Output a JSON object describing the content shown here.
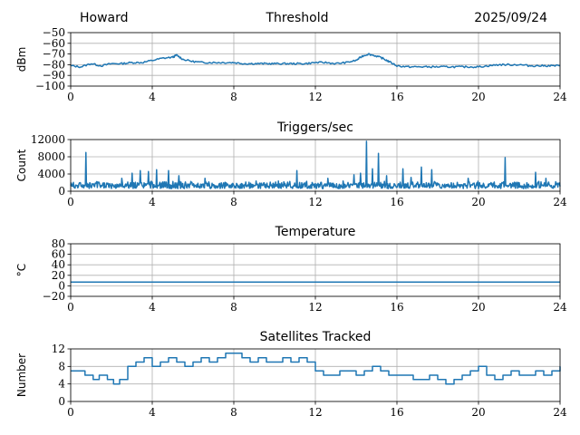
{
  "header": {
    "station": "Howard",
    "title": "Threshold",
    "date": "2025/09/24"
  },
  "chart_data": [
    {
      "type": "line",
      "title": "",
      "xlabel": "",
      "ylabel": "dBm",
      "xlim": [
        0,
        24
      ],
      "ylim": [
        -100,
        -50
      ],
      "xticks": [
        0,
        4,
        8,
        12,
        16,
        20,
        24
      ],
      "yticks": [
        -100,
        -90,
        -80,
        -70,
        -60,
        -50
      ],
      "ytick_labels": [
        "−100",
        "−90",
        "−80",
        "−70",
        "−60",
        "−50"
      ],
      "grid": true,
      "color": "#1f77b4",
      "series": [
        {
          "x": [
            0,
            0.5,
            1,
            1.5,
            2,
            2.5,
            3,
            3.5,
            4,
            4.5,
            5,
            5.2,
            5.5,
            6,
            6.5,
            7,
            7.5,
            8,
            8.5,
            9,
            9.5,
            10,
            10.5,
            11,
            11.5,
            12,
            12.5,
            13,
            13.5,
            14,
            14.3,
            14.6,
            15,
            15.3,
            15.6,
            16,
            16.5,
            17,
            17.5,
            18,
            18.5,
            19,
            19.5,
            20,
            20.5,
            21,
            21.5,
            22,
            22.5,
            23,
            23.5,
            24
          ],
          "values": [
            -81,
            -82,
            -79,
            -81,
            -79,
            -79,
            -78,
            -78,
            -76,
            -74,
            -73,
            -71,
            -75,
            -77,
            -78,
            -78,
            -78,
            -78,
            -79,
            -79,
            -79,
            -79,
            -79,
            -79,
            -79,
            -78,
            -78,
            -79,
            -78,
            -76,
            -72,
            -70,
            -72,
            -74,
            -77,
            -81,
            -82,
            -82,
            -82,
            -82,
            -82,
            -82,
            -82,
            -82,
            -81,
            -80,
            -80,
            -80,
            -81,
            -81,
            -81,
            -81
          ]
        }
      ]
    },
    {
      "type": "line",
      "title": "Triggers/sec",
      "xlabel": "",
      "ylabel": "Count",
      "xlim": [
        0,
        24
      ],
      "ylim": [
        0,
        12000
      ],
      "xticks": [
        0,
        4,
        8,
        12,
        16,
        20,
        24
      ],
      "yticks": [
        0,
        4000,
        8000,
        12000
      ],
      "ytick_labels": [
        "0",
        "4000",
        "8000",
        "12000"
      ],
      "grid": true,
      "color": "#1f77b4",
      "baseline_range": [
        600,
        2400
      ],
      "spikes": [
        {
          "x": 0.75,
          "y": 9000
        },
        {
          "x": 2.5,
          "y": 3000
        },
        {
          "x": 3.0,
          "y": 4200
        },
        {
          "x": 3.4,
          "y": 4800
        },
        {
          "x": 3.8,
          "y": 4600
        },
        {
          "x": 4.2,
          "y": 5000
        },
        {
          "x": 4.8,
          "y": 4800
        },
        {
          "x": 5.3,
          "y": 3600
        },
        {
          "x": 6.6,
          "y": 3000
        },
        {
          "x": 11.1,
          "y": 4800
        },
        {
          "x": 12.6,
          "y": 3000
        },
        {
          "x": 13.9,
          "y": 3800
        },
        {
          "x": 14.2,
          "y": 4200
        },
        {
          "x": 14.5,
          "y": 11600
        },
        {
          "x": 14.8,
          "y": 5200
        },
        {
          "x": 15.1,
          "y": 8800
        },
        {
          "x": 15.5,
          "y": 3600
        },
        {
          "x": 16.3,
          "y": 5200
        },
        {
          "x": 16.7,
          "y": 3200
        },
        {
          "x": 17.2,
          "y": 5600
        },
        {
          "x": 17.7,
          "y": 5000
        },
        {
          "x": 19.5,
          "y": 3000
        },
        {
          "x": 21.3,
          "y": 7800
        },
        {
          "x": 22.8,
          "y": 4400
        },
        {
          "x": 23.3,
          "y": 3000
        }
      ]
    },
    {
      "type": "line",
      "title": "Temperature",
      "xlabel": "",
      "ylabel": "°C",
      "xlim": [
        0,
        24
      ],
      "ylim": [
        -20,
        80
      ],
      "xticks": [
        0,
        4,
        8,
        12,
        16,
        20,
        24
      ],
      "yticks": [
        -20,
        0,
        20,
        40,
        60,
        80
      ],
      "ytick_labels": [
        "−20",
        "0",
        "20",
        "40",
        "60",
        "80"
      ],
      "grid": true,
      "color": "#1f77b4",
      "series": [
        {
          "x": [
            0,
            24
          ],
          "values": [
            7,
            7
          ]
        }
      ]
    },
    {
      "type": "line",
      "title": "Satellites Tracked",
      "xlabel": "",
      "ylabel": "Number",
      "xlim": [
        0,
        24
      ],
      "ylim": [
        0,
        12
      ],
      "xticks": [
        0,
        4,
        8,
        12,
        16,
        20,
        24
      ],
      "yticks": [
        0,
        4,
        8,
        12
      ],
      "ytick_labels": [
        "0",
        "4",
        "8",
        "12"
      ],
      "grid": true,
      "color": "#1f77b4",
      "series": [
        {
          "x": [
            0,
            0.7,
            1.1,
            1.4,
            1.8,
            2.1,
            2.4,
            2.8,
            3.2,
            3.6,
            4.0,
            4.4,
            4.8,
            5.2,
            5.6,
            6.0,
            6.4,
            6.8,
            7.2,
            7.6,
            8.0,
            8.4,
            8.8,
            9.2,
            9.6,
            10.0,
            10.4,
            10.8,
            11.2,
            11.6,
            12.0,
            12.4,
            12.8,
            13.2,
            13.6,
            14.0,
            14.4,
            14.8,
            15.2,
            15.6,
            16.0,
            16.4,
            16.8,
            17.2,
            17.6,
            18.0,
            18.4,
            18.8,
            19.2,
            19.6,
            20.0,
            20.4,
            20.8,
            21.2,
            21.6,
            22.0,
            22.4,
            22.8,
            23.2,
            23.6,
            24
          ],
          "values": [
            7,
            6,
            5,
            6,
            5,
            4,
            5,
            8,
            9,
            10,
            8,
            9,
            10,
            9,
            8,
            9,
            10,
            9,
            10,
            11,
            11,
            10,
            9,
            10,
            9,
            9,
            10,
            9,
            10,
            9,
            7,
            6,
            6,
            7,
            7,
            6,
            7,
            8,
            7,
            6,
            6,
            6,
            5,
            5,
            6,
            5,
            4,
            5,
            6,
            7,
            8,
            6,
            5,
            6,
            7,
            6,
            6,
            7,
            6,
            7,
            8
          ]
        }
      ]
    }
  ]
}
